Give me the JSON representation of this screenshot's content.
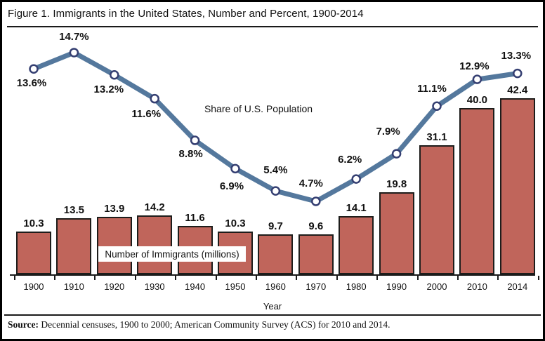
{
  "title": "Figure 1. Immigrants in the United States, Number and Percent, 1900-2014",
  "source": {
    "label": "Source:",
    "text": "Decennial censuses, 1900 to 2000; American Community Survey (ACS) for 2010 and 2014."
  },
  "chart_data": {
    "type": "bar+line",
    "title": "Figure 1. Immigrants in the United States, Number and Percent, 1900-2014",
    "categories": [
      "1900",
      "1910",
      "1920",
      "1930",
      "1940",
      "1950",
      "1960",
      "1970",
      "1980",
      "1990",
      "2000",
      "2010",
      "2014"
    ],
    "xlabel": "Year",
    "grid": "off",
    "legend_position": "inline-annotations",
    "bar_series_label": "Number of Immigrants (millions)",
    "line_series_label": "Share of U.S. Population",
    "series": [
      {
        "name": "Number of Immigrants (millions)",
        "type": "bar",
        "color": "#C0655B",
        "values": [
          10.3,
          13.5,
          13.9,
          14.2,
          11.6,
          10.3,
          9.7,
          9.6,
          14.1,
          19.8,
          31.1,
          40.0,
          42.4
        ],
        "labels": [
          "10.3",
          "13.5",
          "13.9",
          "14.2",
          "11.6",
          "10.3",
          "9.7",
          "9.6",
          "14.1",
          "19.8",
          "31.1",
          "40.0",
          "42.4"
        ]
      },
      {
        "name": "Share of U.S. Population",
        "type": "line",
        "color": "#54789D",
        "marker_fill": "#FFFFFF",
        "marker_stroke": "#353F72",
        "values": [
          13.6,
          14.7,
          13.2,
          11.6,
          8.8,
          6.9,
          5.4,
          4.7,
          6.2,
          7.9,
          11.1,
          12.9,
          13.3
        ],
        "labels": [
          "13.6%",
          "14.7%",
          "13.2%",
          "11.6%",
          "8.8%",
          "6.9%",
          "5.4%",
          "4.7%",
          "6.2%",
          "7.9%",
          "11.1%",
          "12.9%",
          "13.3%"
        ]
      }
    ]
  }
}
